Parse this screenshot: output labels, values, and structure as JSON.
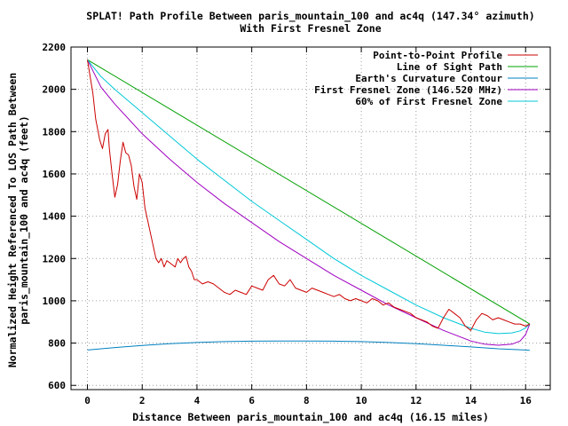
{
  "chart_data": {
    "type": "line",
    "title": "SPLAT! Path Profile Between paris_mountain_100 and ac4q (147.34° azimuth)",
    "subtitle": "With First Fresnel Zone",
    "xlabel": "Distance Between paris_mountain_100 and ac4q (16.15 miles)",
    "ylabel_line1": "Normalized Height Referenced To LOS Path Between",
    "ylabel_line2": "paris_mountain_100 and ac4q (feet)",
    "xlim": [
      -0.6,
      16.9
    ],
    "ylim": [
      580,
      2200
    ],
    "x_ticks": [
      0,
      2,
      4,
      6,
      8,
      10,
      12,
      14,
      16
    ],
    "y_ticks": [
      600,
      800,
      1000,
      1200,
      1400,
      1600,
      1800,
      2000,
      2200
    ],
    "grid": true,
    "legend_position": "top-right",
    "series": [
      {
        "name": "Point-to-Point Profile",
        "color": "#cc0000",
        "x": [
          0,
          0.1,
          0.2,
          0.3,
          0.45,
          0.55,
          0.65,
          0.75,
          0.8,
          0.9,
          1.0,
          1.1,
          1.2,
          1.3,
          1.4,
          1.5,
          1.6,
          1.7,
          1.8,
          1.9,
          2.0,
          2.1,
          2.2,
          2.3,
          2.4,
          2.5,
          2.6,
          2.7,
          2.8,
          2.9,
          3.0,
          3.1,
          3.2,
          3.3,
          3.4,
          3.5,
          3.6,
          3.7,
          3.8,
          3.9,
          4.0,
          4.2,
          4.4,
          4.6,
          4.8,
          5.0,
          5.2,
          5.4,
          5.6,
          5.8,
          6.0,
          6.2,
          6.4,
          6.6,
          6.8,
          7.0,
          7.2,
          7.4,
          7.6,
          7.8,
          8.0,
          8.2,
          8.4,
          8.6,
          8.8,
          9.0,
          9.2,
          9.4,
          9.6,
          9.8,
          10.0,
          10.2,
          10.4,
          10.6,
          10.8,
          11.0,
          11.2,
          11.4,
          11.6,
          11.8,
          12.0,
          12.2,
          12.4,
          12.6,
          12.8,
          13.0,
          13.2,
          13.4,
          13.6,
          13.8,
          14.0,
          14.2,
          14.4,
          14.6,
          14.8,
          15.0,
          15.2,
          15.4,
          15.6,
          15.8,
          16.0,
          16.15
        ],
        "values": [
          2140,
          2060,
          1980,
          1860,
          1760,
          1720,
          1790,
          1810,
          1720,
          1600,
          1490,
          1550,
          1660,
          1750,
          1700,
          1690,
          1640,
          1540,
          1480,
          1600,
          1560,
          1440,
          1380,
          1320,
          1260,
          1200,
          1180,
          1200,
          1160,
          1190,
          1180,
          1170,
          1160,
          1200,
          1180,
          1200,
          1210,
          1160,
          1140,
          1100,
          1100,
          1080,
          1090,
          1080,
          1060,
          1040,
          1030,
          1050,
          1040,
          1030,
          1070,
          1060,
          1050,
          1100,
          1120,
          1080,
          1070,
          1100,
          1060,
          1050,
          1040,
          1060,
          1050,
          1040,
          1030,
          1020,
          1030,
          1010,
          1000,
          1010,
          1000,
          990,
          1010,
          1000,
          980,
          990,
          970,
          960,
          950,
          940,
          920,
          910,
          900,
          880,
          870,
          920,
          960,
          940,
          920,
          880,
          860,
          910,
          940,
          930,
          910,
          920,
          910,
          900,
          890,
          890,
          880,
          890
        ]
      },
      {
        "name": "Line of Sight Path",
        "color": "#00a000",
        "x": [
          0,
          16.15
        ],
        "values": [
          2140,
          890
        ]
      },
      {
        "name": "Earth's Curvature Contour",
        "color": "#0080c0",
        "x": [
          0,
          1,
          2,
          3,
          4,
          5,
          6,
          7,
          8,
          9,
          10,
          11,
          12,
          13,
          14,
          15,
          16,
          16.15
        ],
        "values": [
          767,
          779,
          789,
          797,
          803,
          807,
          809,
          810,
          810,
          809,
          807,
          803,
          797,
          790,
          782,
          773,
          767,
          766
        ]
      },
      {
        "name": "First Fresnel Zone (146.520 MHz)",
        "color": "#a000c0",
        "x": [
          0,
          0.5,
          1,
          2,
          3,
          4,
          5,
          6,
          7,
          8,
          9,
          10,
          11,
          12,
          13,
          14,
          14.5,
          15,
          15.5,
          15.8,
          16.0,
          16.15
        ],
        "values": [
          2140,
          2010,
          1930,
          1790,
          1670,
          1560,
          1460,
          1370,
          1280,
          1200,
          1120,
          1050,
          980,
          920,
          860,
          810,
          795,
          790,
          795,
          810,
          840,
          890
        ]
      },
      {
        "name": "60% of First Fresnel Zone",
        "color": "#00c8d8",
        "x": [
          0,
          0.5,
          1,
          2,
          3,
          4,
          5,
          6,
          7,
          8,
          9,
          10,
          11,
          12,
          13,
          14,
          14.5,
          15,
          15.5,
          15.8,
          16.0,
          16.15
        ],
        "values": [
          2140,
          2060,
          2000,
          1890,
          1780,
          1670,
          1570,
          1470,
          1380,
          1290,
          1200,
          1120,
          1050,
          980,
          920,
          870,
          852,
          845,
          848,
          858,
          872,
          890
        ]
      }
    ]
  }
}
